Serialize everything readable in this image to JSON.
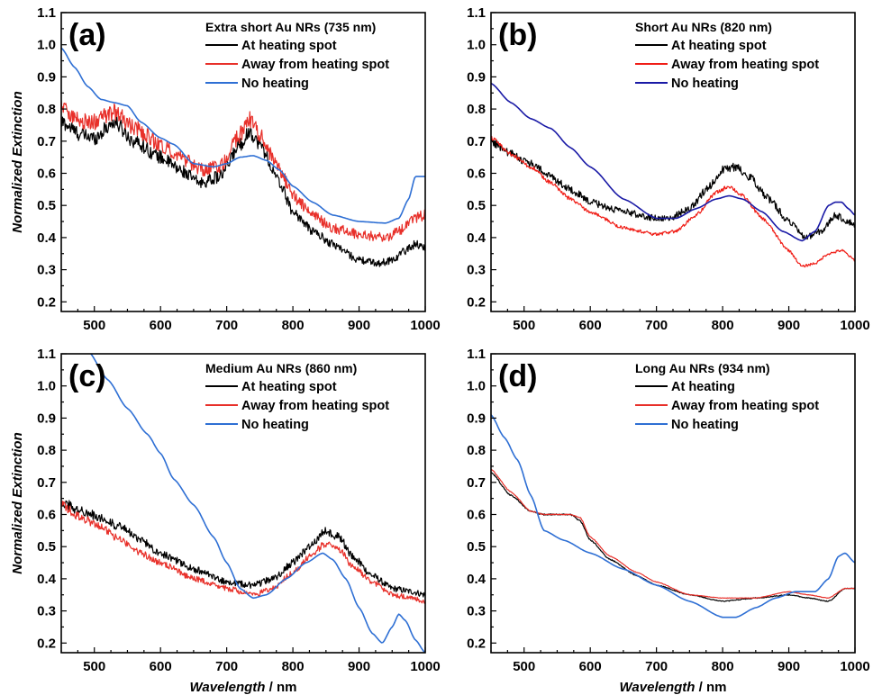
{
  "chart_data": [
    {
      "panel": "(a)",
      "type": "line",
      "legend_title": "Extra short Au NRs (735 nm)",
      "ylabel": "Normalized Extinction",
      "xlabel": "",
      "xlim": [
        450,
        1000
      ],
      "ylim": [
        0.17,
        1.1
      ],
      "xticks": [
        500,
        600,
        700,
        800,
        900,
        1000
      ],
      "yticks": [
        0.2,
        0.3,
        0.4,
        0.5,
        0.6,
        0.7,
        0.8,
        0.9,
        1.0,
        1.1
      ],
      "legend_placement": "top-right",
      "series": [
        {
          "name": "At heating spot",
          "color": "#000000",
          "noise": 0.018,
          "x": [
            450,
            480,
            500,
            530,
            560,
            600,
            630,
            660,
            690,
            720,
            735,
            750,
            780,
            800,
            830,
            860,
            900,
            930,
            950,
            970,
            985,
            1000
          ],
          "y": [
            0.76,
            0.72,
            0.71,
            0.76,
            0.7,
            0.65,
            0.61,
            0.57,
            0.59,
            0.69,
            0.73,
            0.69,
            0.57,
            0.48,
            0.42,
            0.38,
            0.33,
            0.32,
            0.33,
            0.36,
            0.38,
            0.37
          ]
        },
        {
          "name": "Away from heating spot",
          "color": "#e8302a",
          "noise": 0.02,
          "x": [
            450,
            480,
            500,
            530,
            560,
            600,
            630,
            660,
            690,
            720,
            735,
            750,
            780,
            800,
            830,
            860,
            900,
            940,
            960,
            980,
            1000
          ],
          "y": [
            0.81,
            0.76,
            0.76,
            0.79,
            0.74,
            0.69,
            0.65,
            0.61,
            0.62,
            0.72,
            0.77,
            0.72,
            0.61,
            0.53,
            0.47,
            0.43,
            0.41,
            0.4,
            0.42,
            0.46,
            0.47
          ]
        },
        {
          "name": "No heating",
          "color": "#2e6fd4",
          "noise": 0,
          "x": [
            450,
            470,
            490,
            510,
            530,
            550,
            570,
            600,
            620,
            650,
            680,
            700,
            720,
            740,
            760,
            780,
            800,
            830,
            860,
            900,
            940,
            960,
            975,
            985,
            1000
          ],
          "y": [
            0.99,
            0.93,
            0.87,
            0.83,
            0.82,
            0.81,
            0.76,
            0.71,
            0.69,
            0.63,
            0.62,
            0.63,
            0.65,
            0.655,
            0.64,
            0.61,
            0.56,
            0.51,
            0.47,
            0.45,
            0.445,
            0.46,
            0.52,
            0.59,
            0.59
          ]
        }
      ]
    },
    {
      "panel": "(b)",
      "type": "line",
      "legend_title": "Short Au NRs (820 nm)",
      "ylabel": "",
      "xlabel": "",
      "xlim": [
        450,
        1000
      ],
      "ylim": [
        0.17,
        1.1
      ],
      "xticks": [
        500,
        600,
        700,
        800,
        900,
        1000
      ],
      "yticks": [
        0.2,
        0.3,
        0.4,
        0.5,
        0.6,
        0.7,
        0.8,
        0.9,
        1.0,
        1.1
      ],
      "legend_placement": "top-right",
      "series": [
        {
          "name": "At heating spot",
          "color": "#000000",
          "noise": 0.012,
          "x": [
            450,
            480,
            510,
            540,
            570,
            600,
            650,
            700,
            720,
            750,
            780,
            800,
            820,
            840,
            870,
            900,
            925,
            950,
            970,
            990,
            1000
          ],
          "y": [
            0.7,
            0.66,
            0.63,
            0.59,
            0.55,
            0.51,
            0.48,
            0.46,
            0.46,
            0.49,
            0.56,
            0.61,
            0.62,
            0.59,
            0.52,
            0.45,
            0.4,
            0.42,
            0.47,
            0.45,
            0.44
          ]
        },
        {
          "name": "Away from heating spot",
          "color": "#f01d16",
          "noise": 0.006,
          "x": [
            450,
            480,
            510,
            540,
            570,
            600,
            650,
            700,
            730,
            760,
            790,
            810,
            830,
            860,
            900,
            920,
            940,
            960,
            980,
            1000
          ],
          "y": [
            0.71,
            0.66,
            0.62,
            0.57,
            0.52,
            0.48,
            0.43,
            0.41,
            0.42,
            0.47,
            0.54,
            0.56,
            0.53,
            0.46,
            0.36,
            0.31,
            0.32,
            0.35,
            0.36,
            0.33
          ]
        },
        {
          "name": "No heating",
          "color": "#1a1aa6",
          "noise": 0,
          "x": [
            450,
            480,
            510,
            540,
            570,
            600,
            650,
            700,
            730,
            760,
            790,
            810,
            830,
            860,
            890,
            920,
            940,
            960,
            970,
            980,
            990,
            1000
          ],
          "y": [
            0.88,
            0.82,
            0.77,
            0.74,
            0.68,
            0.62,
            0.52,
            0.46,
            0.46,
            0.49,
            0.52,
            0.53,
            0.52,
            0.48,
            0.42,
            0.39,
            0.42,
            0.5,
            0.51,
            0.51,
            0.49,
            0.47
          ]
        }
      ]
    },
    {
      "panel": "(c)",
      "type": "line",
      "legend_title": "Medium Au NRs (860 nm)",
      "ylabel": "Normalized Extinction",
      "xlabel": "Wavelength / nm",
      "xlim": [
        450,
        1000
      ],
      "ylim": [
        0.17,
        1.1
      ],
      "xticks": [
        500,
        600,
        700,
        800,
        900,
        1000
      ],
      "yticks": [
        0.2,
        0.3,
        0.4,
        0.5,
        0.6,
        0.7,
        0.8,
        0.9,
        1.0,
        1.1
      ],
      "legend_placement": "top-right",
      "series": [
        {
          "name": "At heating spot",
          "color": "#000000",
          "noise": 0.014,
          "x": [
            450,
            480,
            510,
            540,
            570,
            600,
            650,
            700,
            740,
            770,
            800,
            830,
            850,
            870,
            890,
            920,
            950,
            980,
            1000
          ],
          "y": [
            0.64,
            0.61,
            0.59,
            0.56,
            0.52,
            0.48,
            0.43,
            0.39,
            0.38,
            0.4,
            0.45,
            0.51,
            0.55,
            0.53,
            0.47,
            0.41,
            0.37,
            0.36,
            0.35
          ]
        },
        {
          "name": "Away from heating spot",
          "color": "#e8302a",
          "noise": 0.012,
          "x": [
            450,
            480,
            510,
            540,
            570,
            600,
            650,
            700,
            740,
            770,
            800,
            830,
            850,
            870,
            890,
            920,
            950,
            980,
            1000
          ],
          "y": [
            0.63,
            0.59,
            0.56,
            0.52,
            0.48,
            0.45,
            0.4,
            0.37,
            0.35,
            0.37,
            0.42,
            0.48,
            0.51,
            0.49,
            0.44,
            0.39,
            0.35,
            0.34,
            0.33
          ]
        },
        {
          "name": "No heating",
          "color": "#2e6fd4",
          "noise": 0,
          "x": [
            450,
            490,
            520,
            550,
            580,
            600,
            620,
            650,
            680,
            700,
            720,
            740,
            760,
            790,
            820,
            845,
            860,
            880,
            900,
            920,
            935,
            950,
            960,
            970,
            985,
            1000
          ],
          "y": [
            1.28,
            1.11,
            1.02,
            0.93,
            0.85,
            0.79,
            0.71,
            0.63,
            0.53,
            0.45,
            0.37,
            0.34,
            0.35,
            0.4,
            0.45,
            0.48,
            0.46,
            0.4,
            0.31,
            0.23,
            0.2,
            0.25,
            0.29,
            0.27,
            0.21,
            0.17
          ]
        }
      ]
    },
    {
      "panel": "(d)",
      "type": "line",
      "legend_title": "Long Au NRs (934 nm)",
      "ylabel": "",
      "xlabel": "Wavelength / nm",
      "xlim": [
        450,
        1000
      ],
      "ylim": [
        0.17,
        1.1
      ],
      "xticks": [
        500,
        600,
        700,
        800,
        900,
        1000
      ],
      "yticks": [
        0.2,
        0.3,
        0.4,
        0.5,
        0.6,
        0.7,
        0.8,
        0.9,
        1.0,
        1.1
      ],
      "legend_placement": "top-right",
      "series": [
        {
          "name": "At heating",
          "color": "#000000",
          "noise": 0.002,
          "x": [
            450,
            480,
            510,
            530,
            550,
            570,
            585,
            600,
            630,
            670,
            700,
            750,
            800,
            850,
            900,
            930,
            960,
            985,
            1000
          ],
          "y": [
            0.73,
            0.66,
            0.61,
            0.6,
            0.6,
            0.6,
            0.58,
            0.52,
            0.46,
            0.41,
            0.38,
            0.35,
            0.33,
            0.34,
            0.35,
            0.34,
            0.33,
            0.37,
            0.37
          ]
        },
        {
          "name": "Away from heating spot",
          "color": "#e8302a",
          "noise": 0.001,
          "x": [
            450,
            480,
            510,
            530,
            550,
            570,
            585,
            600,
            630,
            670,
            700,
            750,
            800,
            850,
            900,
            930,
            960,
            985,
            1000
          ],
          "y": [
            0.74,
            0.67,
            0.61,
            0.6,
            0.6,
            0.6,
            0.59,
            0.53,
            0.47,
            0.42,
            0.39,
            0.35,
            0.34,
            0.34,
            0.36,
            0.35,
            0.34,
            0.37,
            0.37
          ]
        },
        {
          "name": "No heating",
          "color": "#2e6fd4",
          "noise": 0,
          "x": [
            450,
            470,
            490,
            510,
            530,
            560,
            600,
            650,
            700,
            750,
            800,
            820,
            850,
            880,
            910,
            940,
            960,
            975,
            985,
            1000
          ],
          "y": [
            0.91,
            0.84,
            0.77,
            0.66,
            0.55,
            0.52,
            0.48,
            0.43,
            0.38,
            0.33,
            0.28,
            0.28,
            0.31,
            0.34,
            0.36,
            0.36,
            0.4,
            0.47,
            0.48,
            0.45
          ]
        }
      ]
    }
  ]
}
